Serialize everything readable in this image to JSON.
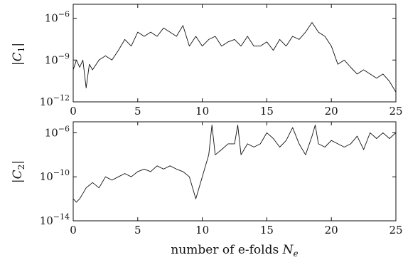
{
  "chart_data": [
    {
      "type": "line",
      "ylabel": "|C1|",
      "yscale": "log",
      "xlim": [
        0,
        25
      ],
      "ylim": [
        1e-12,
        1e-05
      ],
      "xticks": [
        "0",
        "5",
        "10",
        "15",
        "20",
        "25"
      ],
      "yticks": [
        {
          "value": 1e-06,
          "label": "10−6"
        },
        {
          "value": 1e-09,
          "label": "10−9"
        },
        {
          "value": 1e-12,
          "label": "10−12"
        }
      ],
      "grid": false,
      "series": [
        {
          "x": [
            0,
            0.25,
            0.5,
            0.75,
            1.0,
            1.25,
            1.5,
            2.0,
            2.5,
            3.0,
            3.5,
            4.0,
            4.5,
            5.0,
            5.5,
            6.0,
            6.5,
            7.0,
            7.5,
            8.0,
            8.5,
            9.0,
            9.5,
            10.0,
            10.5,
            11.0,
            11.5,
            12.0,
            12.5,
            13.0,
            13.5,
            14.0,
            14.5,
            15.0,
            15.5,
            16.0,
            16.5,
            17.0,
            17.5,
            18.0,
            18.5,
            19.0,
            19.5,
            20.0,
            20.5,
            21.0,
            21.5,
            22.0,
            22.5,
            23.0,
            23.5,
            24.0,
            24.5,
            25.0
          ],
          "y": [
            2e-10,
            1e-09,
            3e-10,
            1e-09,
            1e-11,
            5e-10,
            2e-10,
            1e-09,
            2e-09,
            1e-09,
            5e-09,
            3e-08,
            1e-08,
            1e-07,
            5e-08,
            1e-07,
            5e-08,
            2e-07,
            1e-07,
            5e-08,
            3e-07,
            1e-08,
            5e-08,
            1e-08,
            3e-08,
            5e-08,
            1e-08,
            2e-08,
            3e-08,
            1e-08,
            5e-08,
            1e-08,
            1e-08,
            2e-08,
            5e-09,
            3e-08,
            1e-08,
            5e-08,
            3e-08,
            1e-07,
            5e-07,
            1e-07,
            5e-08,
            1e-08,
            5e-10,
            1e-09,
            3e-10,
            1e-10,
            2e-10,
            1e-10,
            5e-11,
            1e-10,
            3e-11,
            5e-12
          ]
        }
      ]
    },
    {
      "type": "line",
      "ylabel": "|C2|",
      "xlabel": "number of e-folds Ne",
      "yscale": "log",
      "xlim": [
        0,
        25
      ],
      "ylim": [
        1e-14,
        1e-05
      ],
      "xticks": [
        "0",
        "5",
        "10",
        "15",
        "20",
        "25"
      ],
      "yticks": [
        {
          "value": 1e-06,
          "label": "10−6"
        },
        {
          "value": 1e-10,
          "label": "10−10"
        },
        {
          "value": 1e-14,
          "label": "10−14"
        }
      ],
      "grid": false,
      "series": [
        {
          "x": [
            0,
            0.25,
            0.5,
            0.75,
            1.0,
            1.5,
            2.0,
            2.5,
            3.0,
            3.5,
            4.0,
            4.5,
            5.0,
            5.5,
            6.0,
            6.5,
            7.0,
            7.5,
            8.0,
            8.5,
            9.0,
            9.5,
            10.0,
            10.5,
            10.75,
            11.0,
            11.5,
            12.0,
            12.5,
            12.75,
            13.0,
            13.5,
            14.0,
            14.5,
            15.0,
            15.5,
            16.0,
            16.5,
            17.0,
            17.5,
            18.0,
            18.5,
            18.75,
            19.0,
            19.5,
            20.0,
            20.5,
            21.0,
            21.5,
            22.0,
            22.5,
            23.0,
            23.5,
            24.0,
            24.5,
            25.0
          ],
          "y": [
            1e-12,
            5e-13,
            1e-12,
            3e-12,
            1e-11,
            3e-11,
            1e-11,
            1e-10,
            5e-11,
            1e-10,
            2e-10,
            1e-10,
            3e-10,
            5e-10,
            3e-10,
            1e-09,
            5e-10,
            1e-09,
            5e-10,
            3e-10,
            1e-10,
            1e-12,
            1e-10,
            1e-08,
            5e-06,
            1e-08,
            3e-08,
            1e-07,
            1e-07,
            5e-06,
            1e-08,
            1e-07,
            5e-08,
            1e-07,
            1e-06,
            3e-07,
            5e-08,
            2e-07,
            3e-06,
            1e-07,
            1e-08,
            5e-07,
            5e-06,
            1e-07,
            5e-08,
            2e-07,
            1e-07,
            5e-08,
            1e-07,
            5e-07,
            3e-08,
            1e-06,
            3e-07,
            1e-06,
            3e-07,
            1e-06
          ]
        }
      ]
    }
  ],
  "labels": {
    "panel1_ylabel_symbol": "C",
    "panel1_ylabel_sub": "1",
    "panel2_ylabel_symbol": "C",
    "panel2_ylabel_sub": "2",
    "xlabel_main": "number of e-folds ",
    "xlabel_var": "N",
    "xlabel_sub": "e"
  }
}
